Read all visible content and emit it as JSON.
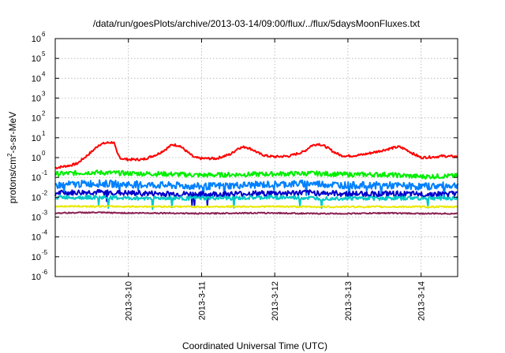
{
  "chart_data": {
    "type": "line",
    "title": "/data/run/goesPlots/archive/2013-03-14/09:00/flux/../flux/5daysMoonFluxes.txt",
    "xlabel": "Coordinated Universal Time (UTC)",
    "ylabel_parts": [
      "protons/cm",
      "2",
      "-s-sr-MeV"
    ],
    "x_range_days": [
      0,
      5.5
    ],
    "x_ticks": [
      {
        "label": "2013-3-10",
        "day": 1
      },
      {
        "label": "2013-3-11",
        "day": 2
      },
      {
        "label": "2013-3-12",
        "day": 3
      },
      {
        "label": "2013-3-13",
        "day": 4
      },
      {
        "label": "2013-3-14",
        "day": 5
      }
    ],
    "y_scale": "log",
    "y_exp_range": [
      -6,
      6
    ],
    "y_ticks": [
      {
        "base": "10",
        "exp": "6",
        "e": 6
      },
      {
        "base": "10",
        "exp": "5",
        "e": 5
      },
      {
        "base": "10",
        "exp": "4",
        "e": 4
      },
      {
        "base": "10",
        "exp": "3",
        "e": 3
      },
      {
        "base": "10",
        "exp": "2",
        "e": 2
      },
      {
        "base": "10",
        "exp": "1",
        "e": 1
      },
      {
        "base": "10",
        "exp": "0",
        "e": 0
      },
      {
        "base": "10",
        "exp": "-1",
        "e": -1
      },
      {
        "base": "10",
        "exp": "-2",
        "e": -2
      },
      {
        "base": "10",
        "exp": "-3",
        "e": -3
      },
      {
        "base": "10",
        "exp": "-4",
        "e": -4
      },
      {
        "base": "10",
        "exp": "-5",
        "e": -5
      },
      {
        "base": "10",
        "exp": "-6",
        "e": -6
      }
    ],
    "grid": true,
    "legend": "none",
    "series": [
      {
        "color": "#ff0000",
        "x": [
          0,
          0.1,
          0.2,
          0.3,
          0.4,
          0.5,
          0.6,
          0.7,
          0.8,
          0.85,
          0.9,
          1.0,
          1.2,
          1.4,
          1.5,
          1.6,
          1.7,
          1.8,
          1.9,
          2.0,
          2.2,
          2.4,
          2.5,
          2.6,
          2.7,
          2.8,
          2.9,
          3.0,
          3.2,
          3.4,
          3.5,
          3.6,
          3.7,
          3.8,
          3.9,
          4.0,
          4.2,
          4.4,
          4.6,
          4.7,
          4.8,
          4.9,
          5.0,
          5.2,
          5.3,
          5.5
        ],
        "y": [
          0.3,
          0.35,
          0.4,
          0.5,
          1.0,
          2.0,
          4.5,
          5.5,
          6.0,
          1.5,
          0.9,
          0.8,
          0.8,
          1.5,
          2.5,
          4.5,
          4.0,
          2.0,
          1.0,
          0.9,
          0.9,
          1.5,
          3.0,
          3.5,
          2.5,
          1.5,
          1.2,
          1.1,
          1.2,
          2.0,
          4.0,
          5.0,
          3.5,
          2.0,
          1.3,
          1.2,
          1.4,
          2.0,
          3.0,
          3.5,
          2.5,
          1.5,
          1.0,
          1.1,
          1.2,
          1.1
        ]
      },
      {
        "color": "#00ee00",
        "x": [
          0,
          0.5,
          1.0,
          1.5,
          2.0,
          2.5,
          3.0,
          3.5,
          4.0,
          4.5,
          5.0,
          5.5
        ],
        "y": [
          0.15,
          0.18,
          0.16,
          0.15,
          0.13,
          0.14,
          0.15,
          0.16,
          0.14,
          0.14,
          0.11,
          0.12
        ]
      },
      {
        "color": "#0080ff",
        "x": [
          0,
          0.5,
          1.0,
          1.5,
          2.0,
          2.5,
          3.0,
          3.5,
          4.0,
          4.5,
          5.0,
          5.5
        ],
        "y": [
          0.04,
          0.05,
          0.045,
          0.04,
          0.035,
          0.04,
          0.045,
          0.05,
          0.04,
          0.04,
          0.035,
          0.04
        ]
      },
      {
        "color": "#0000cc",
        "x": [
          0,
          0.5,
          1.0,
          1.5,
          2.0,
          2.5,
          3.0,
          3.5,
          4.0,
          4.5,
          5.0,
          5.5
        ],
        "y": [
          0.016,
          0.018,
          0.016,
          0.015,
          0.014,
          0.015,
          0.016,
          0.017,
          0.015,
          0.015,
          0.014,
          0.015
        ]
      },
      {
        "color": "#00c8c8",
        "x": [
          0,
          0.5,
          1.0,
          1.5,
          2.0,
          2.5,
          3.0,
          3.5,
          4.0,
          4.5,
          5.0,
          5.5
        ],
        "y": [
          0.01,
          0.01,
          0.009,
          0.009,
          0.009,
          0.009,
          0.01,
          0.009,
          0.009,
          0.009,
          0.009,
          0.009
        ]
      },
      {
        "color": "#e8e800",
        "x": [
          0,
          0.5,
          1.0,
          1.5,
          2.0,
          2.5,
          3.0,
          3.5,
          4.0,
          4.5,
          5.0,
          5.5
        ],
        "y": [
          0.0035,
          0.0035,
          0.0034,
          0.0034,
          0.0033,
          0.0034,
          0.0034,
          0.0033,
          0.0033,
          0.0033,
          0.0033,
          0.0033
        ]
      },
      {
        "color": "#8b2252",
        "x": [
          0,
          0.5,
          1.0,
          1.5,
          2.0,
          2.5,
          3.0,
          3.5,
          4.0,
          4.5,
          5.0,
          5.5
        ],
        "y": [
          0.0016,
          0.0017,
          0.0016,
          0.0016,
          0.0015,
          0.0016,
          0.0016,
          0.0015,
          0.0015,
          0.0016,
          0.0015,
          0.0015
        ]
      }
    ]
  }
}
